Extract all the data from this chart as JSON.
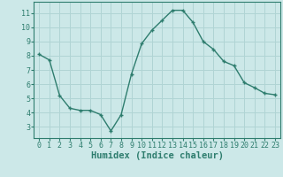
{
  "x": [
    0,
    1,
    2,
    3,
    4,
    5,
    6,
    7,
    8,
    9,
    10,
    11,
    12,
    13,
    14,
    15,
    16,
    17,
    18,
    19,
    20,
    21,
    22,
    23
  ],
  "y": [
    8.1,
    7.7,
    5.2,
    4.3,
    4.15,
    4.15,
    3.85,
    2.7,
    3.85,
    6.7,
    8.85,
    9.8,
    10.5,
    11.2,
    11.2,
    10.35,
    9.0,
    8.45,
    7.6,
    7.3,
    6.1,
    5.75,
    5.35,
    5.25
  ],
  "line_color": "#2e7d6e",
  "marker": "+",
  "marker_size": 3.5,
  "marker_edge_width": 1.0,
  "line_width": 1.0,
  "bg_color": "#cce8e8",
  "grid_color": "#b0d4d4",
  "xlabel": "Humidex (Indice chaleur)",
  "xlabel_fontsize": 7.5,
  "xlabel_fontweight": "bold",
  "xlim": [
    -0.5,
    23.5
  ],
  "ylim": [
    2.2,
    11.8
  ],
  "yticks": [
    3,
    4,
    5,
    6,
    7,
    8,
    9,
    10,
    11
  ],
  "xticks": [
    0,
    1,
    2,
    3,
    4,
    5,
    6,
    7,
    8,
    9,
    10,
    11,
    12,
    13,
    14,
    15,
    16,
    17,
    18,
    19,
    20,
    21,
    22,
    23
  ],
  "tick_fontsize": 6,
  "tick_color": "#2e7d6e",
  "axis_label_color": "#2e7d6e",
  "spine_color": "#2e7d6e"
}
